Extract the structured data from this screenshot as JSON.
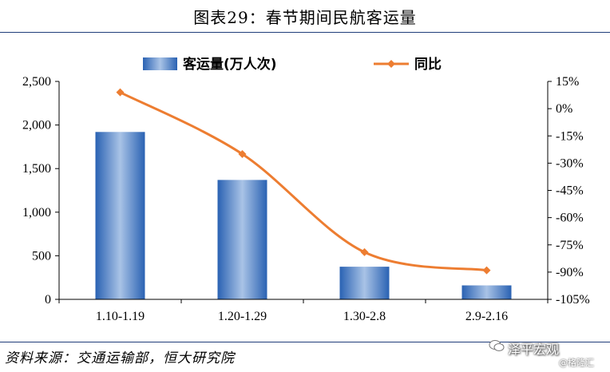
{
  "title": "图表29：春节期间民航客运量",
  "source": "资料来源：交通运输部，恒大研究院",
  "watermark": {
    "brand": "泽平宏观",
    "sub": "@格隆汇"
  },
  "colors": {
    "bar": "#4f86c6",
    "line": "#ed7d31",
    "rule": "#1f3d7a"
  },
  "chart_data": {
    "type": "bar+line",
    "categories": [
      "1.10-1.19",
      "1.20-1.29",
      "1.30-2.8",
      "2.9-2.16"
    ],
    "series": [
      {
        "name": "客运量(万人次)",
        "type": "bar",
        "axis": "left",
        "values": [
          1920,
          1370,
          375,
          160
        ]
      },
      {
        "name": "同比",
        "type": "line",
        "axis": "right",
        "values": [
          9,
          -25,
          -79,
          -89
        ]
      }
    ],
    "y_left": {
      "min": 0,
      "max": 2500,
      "step": 500,
      "ticks": [
        "0",
        "500",
        "1,000",
        "1,500",
        "2,000",
        "2,500"
      ]
    },
    "y_right": {
      "min": -105,
      "max": 15,
      "step": 15,
      "ticks": [
        "-105%",
        "-90%",
        "-75%",
        "-60%",
        "-45%",
        "-30%",
        "-15%",
        "0%",
        "15%"
      ]
    },
    "legend_position": "top-center",
    "grid": false
  }
}
